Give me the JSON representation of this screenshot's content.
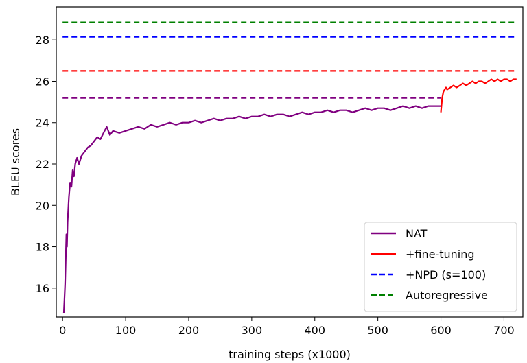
{
  "chart_data": {
    "type": "line",
    "title": "",
    "xlabel": "training steps (x1000)",
    "ylabel": "BLEU scores",
    "xlim": [
      -10,
      730
    ],
    "ylim": [
      14.6,
      29.6
    ],
    "xticks": [
      0,
      100,
      200,
      300,
      400,
      500,
      600,
      700
    ],
    "yticks": [
      16,
      18,
      20,
      22,
      24,
      26,
      28
    ],
    "grid": false,
    "legend_position": "lower-right",
    "series": [
      {
        "name": "NAT",
        "color": "#800080",
        "style": "solid",
        "x": [
          2,
          4,
          6,
          7,
          8,
          10,
          12,
          14,
          16,
          18,
          20,
          23,
          26,
          30,
          35,
          40,
          45,
          50,
          55,
          60,
          65,
          70,
          75,
          80,
          90,
          100,
          110,
          120,
          130,
          140,
          150,
          160,
          170,
          180,
          190,
          200,
          210,
          220,
          230,
          240,
          250,
          260,
          270,
          280,
          290,
          300,
          310,
          320,
          330,
          340,
          350,
          360,
          370,
          380,
          390,
          400,
          410,
          420,
          430,
          440,
          450,
          460,
          470,
          480,
          490,
          500,
          510,
          520,
          530,
          540,
          550,
          560,
          570,
          580,
          590,
          600
        ],
        "y": [
          14.8,
          16.2,
          18.6,
          18.0,
          19.2,
          20.4,
          21.1,
          20.9,
          21.7,
          21.4,
          22.0,
          22.3,
          22.0,
          22.4,
          22.6,
          22.8,
          22.9,
          23.1,
          23.3,
          23.2,
          23.5,
          23.8,
          23.4,
          23.6,
          23.5,
          23.6,
          23.7,
          23.8,
          23.7,
          23.9,
          23.8,
          23.9,
          24.0,
          23.9,
          24.0,
          24.0,
          24.1,
          24.0,
          24.1,
          24.2,
          24.1,
          24.2,
          24.2,
          24.3,
          24.2,
          24.3,
          24.3,
          24.4,
          24.3,
          24.4,
          24.4,
          24.3,
          24.4,
          24.5,
          24.4,
          24.5,
          24.5,
          24.6,
          24.5,
          24.6,
          24.6,
          24.5,
          24.6,
          24.7,
          24.6,
          24.7,
          24.7,
          24.6,
          24.7,
          24.8,
          24.7,
          24.8,
          24.7,
          24.8,
          24.8,
          24.8
        ]
      },
      {
        "name": "+fine-tuning",
        "color": "#ff0000",
        "style": "solid",
        "x": [
          600,
          602,
          604,
          606,
          608,
          610,
          615,
          620,
          625,
          630,
          635,
          640,
          645,
          650,
          655,
          660,
          665,
          670,
          675,
          680,
          685,
          690,
          695,
          700,
          705,
          710,
          715,
          720
        ],
        "y": [
          24.5,
          25.2,
          25.5,
          25.6,
          25.7,
          25.6,
          25.7,
          25.8,
          25.7,
          25.8,
          25.9,
          25.8,
          25.9,
          26.0,
          25.9,
          26.0,
          26.0,
          25.9,
          26.0,
          26.1,
          26.0,
          26.1,
          26.0,
          26.1,
          26.1,
          26.0,
          26.1,
          26.1
        ]
      },
      {
        "name": "+NPD (s=100)",
        "color": "#0000ff",
        "style": "dashed",
        "x": [
          0,
          720
        ],
        "y": [
          28.15,
          28.15
        ]
      },
      {
        "name": "Autoregressive",
        "color": "#008000",
        "style": "dashed",
        "x": [
          0,
          720
        ],
        "y": [
          28.85,
          28.85
        ]
      },
      {
        "color": "#ff0000",
        "style": "dashed",
        "x": [
          0,
          720
        ],
        "y": [
          26.5,
          26.5
        ]
      },
      {
        "color": "#800080",
        "style": "dashed",
        "x": [
          0,
          600
        ],
        "y": [
          25.2,
          25.2
        ]
      }
    ]
  }
}
